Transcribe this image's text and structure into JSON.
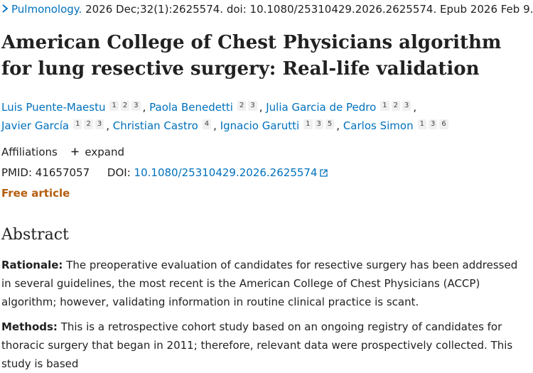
{
  "citation": {
    "journal": "Pulmonology.",
    "details": "2026 Dec;32(1):2625574. doi: 10.1080/25310429.2026.2625574. Epub 2026 Feb 9."
  },
  "title": "American College of Chest Physicians algorithm for lung resective surgery: Real-life validation",
  "authors": [
    {
      "name": "Luis Puente-Maestu",
      "affs": [
        "1",
        "2",
        "3"
      ]
    },
    {
      "name": "Paola Benedetti",
      "affs": [
        "2",
        "3"
      ]
    },
    {
      "name": "Julia Garcia de Pedro",
      "affs": [
        "1",
        "2",
        "3"
      ]
    },
    {
      "name": "Javier García",
      "affs": [
        "1",
        "2",
        "3"
      ]
    },
    {
      "name": "Christian Castro",
      "affs": [
        "4"
      ]
    },
    {
      "name": "Ignacio Garutti",
      "affs": [
        "1",
        "3",
        "5"
      ]
    },
    {
      "name": "Carlos Simon",
      "affs": [
        "1",
        "3",
        "6"
      ]
    }
  ],
  "affiliations": {
    "label": "Affiliations",
    "expand": "expand"
  },
  "ids": {
    "pmid_label": "PMID: 41657057",
    "doi_label": "DOI:",
    "doi": "10.1080/25310429.2026.2625574"
  },
  "free_article": "Free article",
  "abstract": {
    "heading": "Abstract",
    "rationale_label": "Rationale:",
    "rationale_text": " The preoperative evaluation of candidates for resective surgery has been addressed in several guidelines, the most recent is the American College of Chest Physicians (ACCP) algorithm; however, validating information in routine clinical practice is scant.",
    "methods_label": "Methods:",
    "methods_text": " This is a retrospective cohort study based on an ongoing registry of candidates for thoracic surgery that began in 2011; therefore, relevant data were prospectively collected. This study is based"
  },
  "colors": {
    "link": "#0071bc",
    "free": "#b35e0e",
    "text": "#212121"
  },
  "icons": {
    "citation_chevron": "chevron-right-icon",
    "affiliations_toggle": "plus-icon",
    "doi_external": "external-link-icon"
  }
}
